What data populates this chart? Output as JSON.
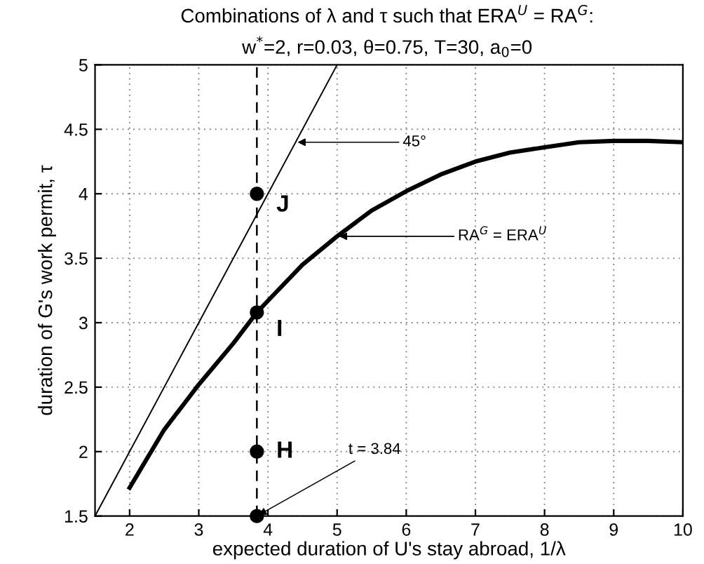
{
  "chart_data": {
    "type": "line",
    "title": "Combinations of λ and τ such that ERA$^{U}$ = RA$^{G}$:",
    "subtitle": "w$^{*}$=2, r=0.03, θ=0.75, T=30, a$_{0}$=0",
    "xlabel": "expected duration of U's stay abroad, 1/λ",
    "ylabel": "duration of G's work permit, τ",
    "series": [
      {
        "color": "#000000",
        "x": [
          2,
          2.5,
          3,
          3.5,
          3.84,
          4,
          4.5,
          5,
          5.5,
          6,
          6.5,
          7,
          7.5,
          8,
          8.5,
          9,
          9.5,
          10
        ],
        "values": [
          1.72,
          2.17,
          2.52,
          2.84,
          3.08,
          3.17,
          3.45,
          3.67,
          3.87,
          4.02,
          4.15,
          4.25,
          4.32,
          4.36,
          4.4,
          4.41,
          4.41,
          4.4
        ]
      },
      {
        "color": "#000000",
        "x": [
          1.5,
          5
        ],
        "values": [
          1.5,
          5
        ]
      },
      {
        "type": "scatter",
        "marker": "circle",
        "color": "#000000",
        "x": [
          3.84,
          3.84,
          3.84,
          3.84
        ],
        "values": [
          4,
          3.08,
          2,
          1.5
        ]
      }
    ],
    "ref_lines": [
      {
        "axis": "x",
        "value": 3.84,
        "color": "#000000",
        "line_style": "dashed"
      }
    ],
    "annotations": [
      {
        "text": "J",
        "x": 3.84,
        "y": 4
      },
      {
        "text": "I",
        "x": 3.84,
        "y": 3.08
      },
      {
        "text": "H",
        "x": 3.84,
        "y": 2
      },
      {
        "text": "45°",
        "x": 4.4,
        "y": 4.4
      },
      {
        "text": "RA$^{G}$ = ERA$^{U}$",
        "x": 5,
        "y": 3.67
      },
      {
        "text": "t = 3.84",
        "x": 3.84,
        "y": 1.5
      }
    ],
    "xlim": [
      1.5,
      10
    ],
    "xticks": [
      2,
      3,
      4,
      5,
      6,
      7,
      8,
      9,
      10
    ],
    "ylim": [
      1.5,
      5
    ],
    "yticks": [
      1.5,
      2,
      2.5,
      3,
      3.5,
      4,
      4.5,
      5
    ],
    "grid": true,
    "marker": "none",
    "line_style": "solid"
  }
}
